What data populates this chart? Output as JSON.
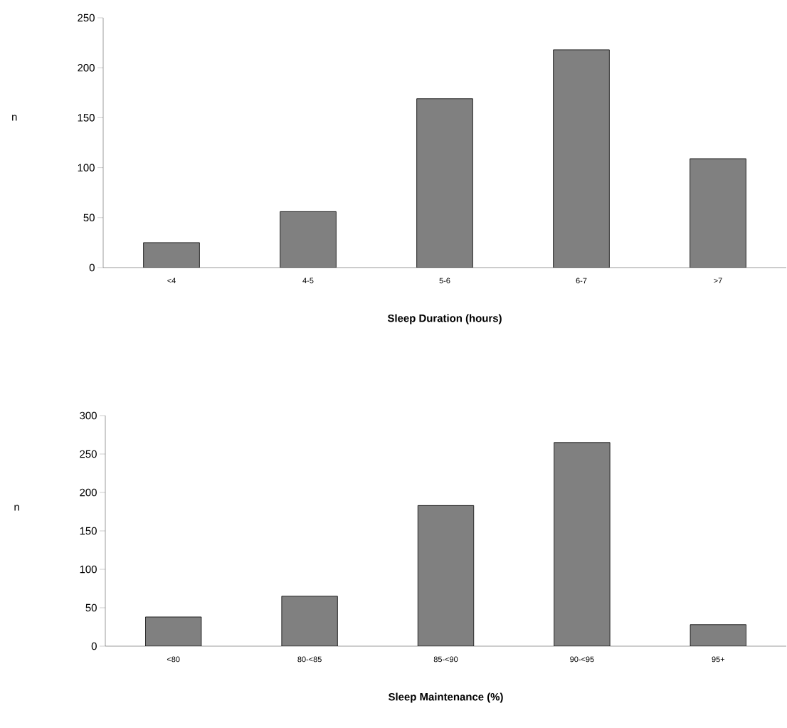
{
  "chart_data": [
    {
      "type": "bar",
      "xlabel": "Sleep Duration (hours)",
      "ylabel": "n",
      "categories": [
        "<4",
        "4-5",
        "5-6",
        "6-7",
        ">7"
      ],
      "values": [
        25,
        56,
        169,
        218,
        109
      ],
      "color": "#808080",
      "ylim": [
        0,
        250
      ],
      "yticks": [
        0,
        50,
        100,
        150,
        200,
        250
      ]
    },
    {
      "type": "bar",
      "xlabel": "Sleep Maintenance (%)",
      "ylabel": "n",
      "categories": [
        "<80",
        "80-<85",
        "85-<90",
        "90-<95",
        "95+"
      ],
      "values": [
        38,
        65,
        183,
        265,
        28
      ],
      "color": "#808080",
      "ylim": [
        0,
        300
      ],
      "yticks": [
        0,
        50,
        100,
        150,
        200,
        250,
        300
      ]
    }
  ]
}
